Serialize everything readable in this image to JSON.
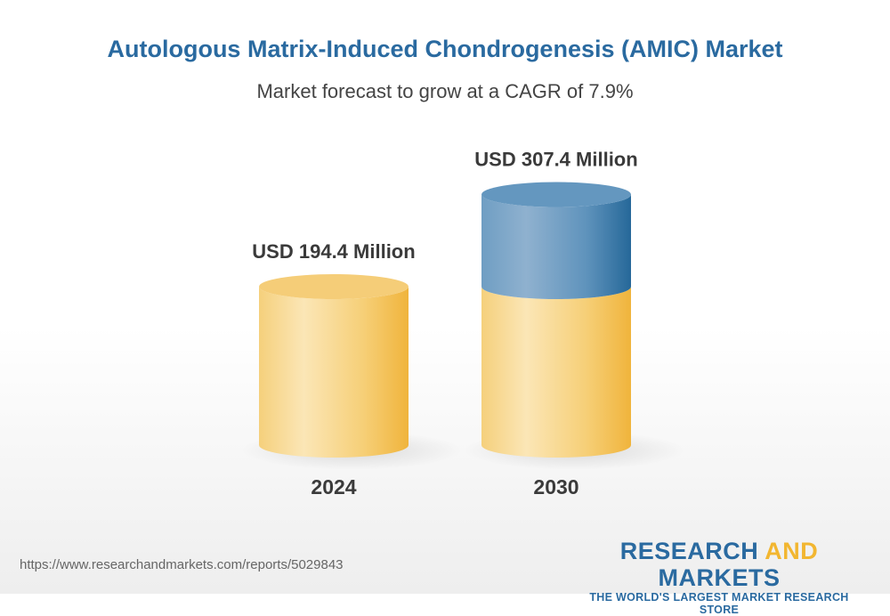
{
  "title": "Autologous Matrix-Induced Chondrogenesis (AMIC) Market",
  "subtitle": "Market forecast to grow at a CAGR of 7.9%",
  "chart_data": {
    "type": "bar",
    "style": "3d-cylinder",
    "categories": [
      "2024",
      "2030"
    ],
    "values": [
      194.4,
      307.4
    ],
    "data_labels": [
      "USD 194.4 Million",
      "USD 307.4 Million"
    ],
    "colors": {
      "base": "#f2bf4f",
      "growth": "#2f6fa3"
    }
  },
  "footer": {
    "url": "https://www.researchandmarkets.com/reports/5029843",
    "logo_part1": "RESEARCH",
    "logo_part2": "AND",
    "logo_part3": "MARKETS",
    "tagline": "THE WORLD'S LARGEST MARKET RESEARCH STORE"
  }
}
